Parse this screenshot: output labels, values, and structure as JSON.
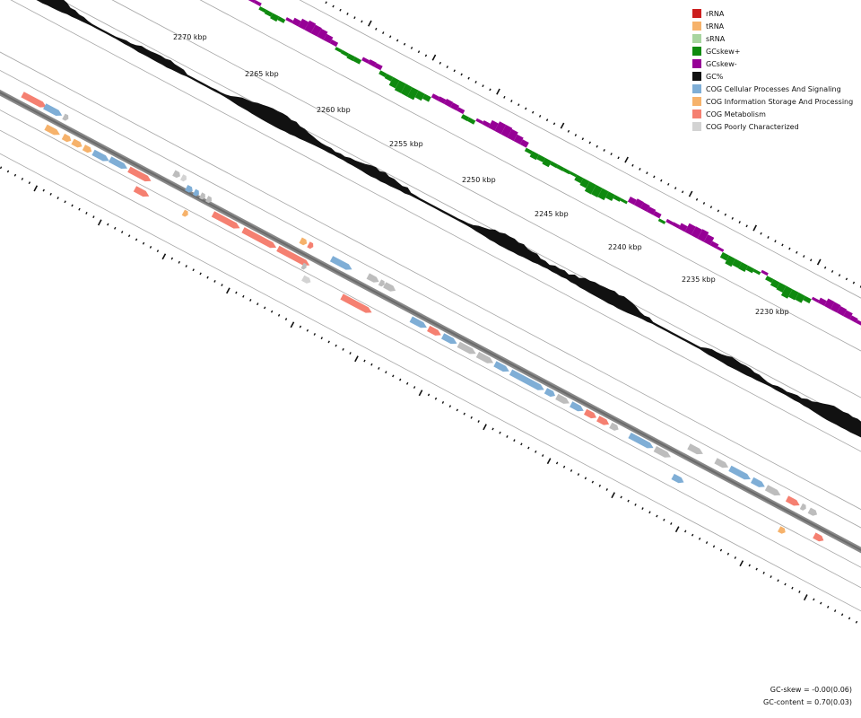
{
  "diagram": {
    "type": "linear genome map (zoomed circular map)",
    "tick_labels": [
      "2270 kbp",
      "2265 kbp",
      "2260 kbp",
      "2255 kbp",
      "2250 kbp",
      "2245 kbp",
      "2240 kbp",
      "2235 kbp",
      "2230 kbp"
    ]
  },
  "legend": {
    "items": [
      {
        "label": "rRNA",
        "color": "#cc1f1f"
      },
      {
        "label": "tRNA",
        "color": "#f6b26b"
      },
      {
        "label": "sRNA",
        "color": "#a8d5a0"
      },
      {
        "label": "GCskew+",
        "color": "#0f8a0f"
      },
      {
        "label": "GCskew-",
        "color": "#960096"
      },
      {
        "label": "GC%",
        "color": "#111111"
      },
      {
        "label": "COG Cellular Processes And Signaling",
        "color": "#7faed6"
      },
      {
        "label": "COG Information Storage And Processing",
        "color": "#f6b26b"
      },
      {
        "label": "COG Metabolism",
        "color": "#f58071"
      },
      {
        "label": "COG Poorly Characterized",
        "color": "#d3d3d3"
      }
    ]
  },
  "stats": {
    "gc_skew": "GC-skew = -0.00(0.06)",
    "gc_content": "GC-content = 0.70(0.03)"
  }
}
